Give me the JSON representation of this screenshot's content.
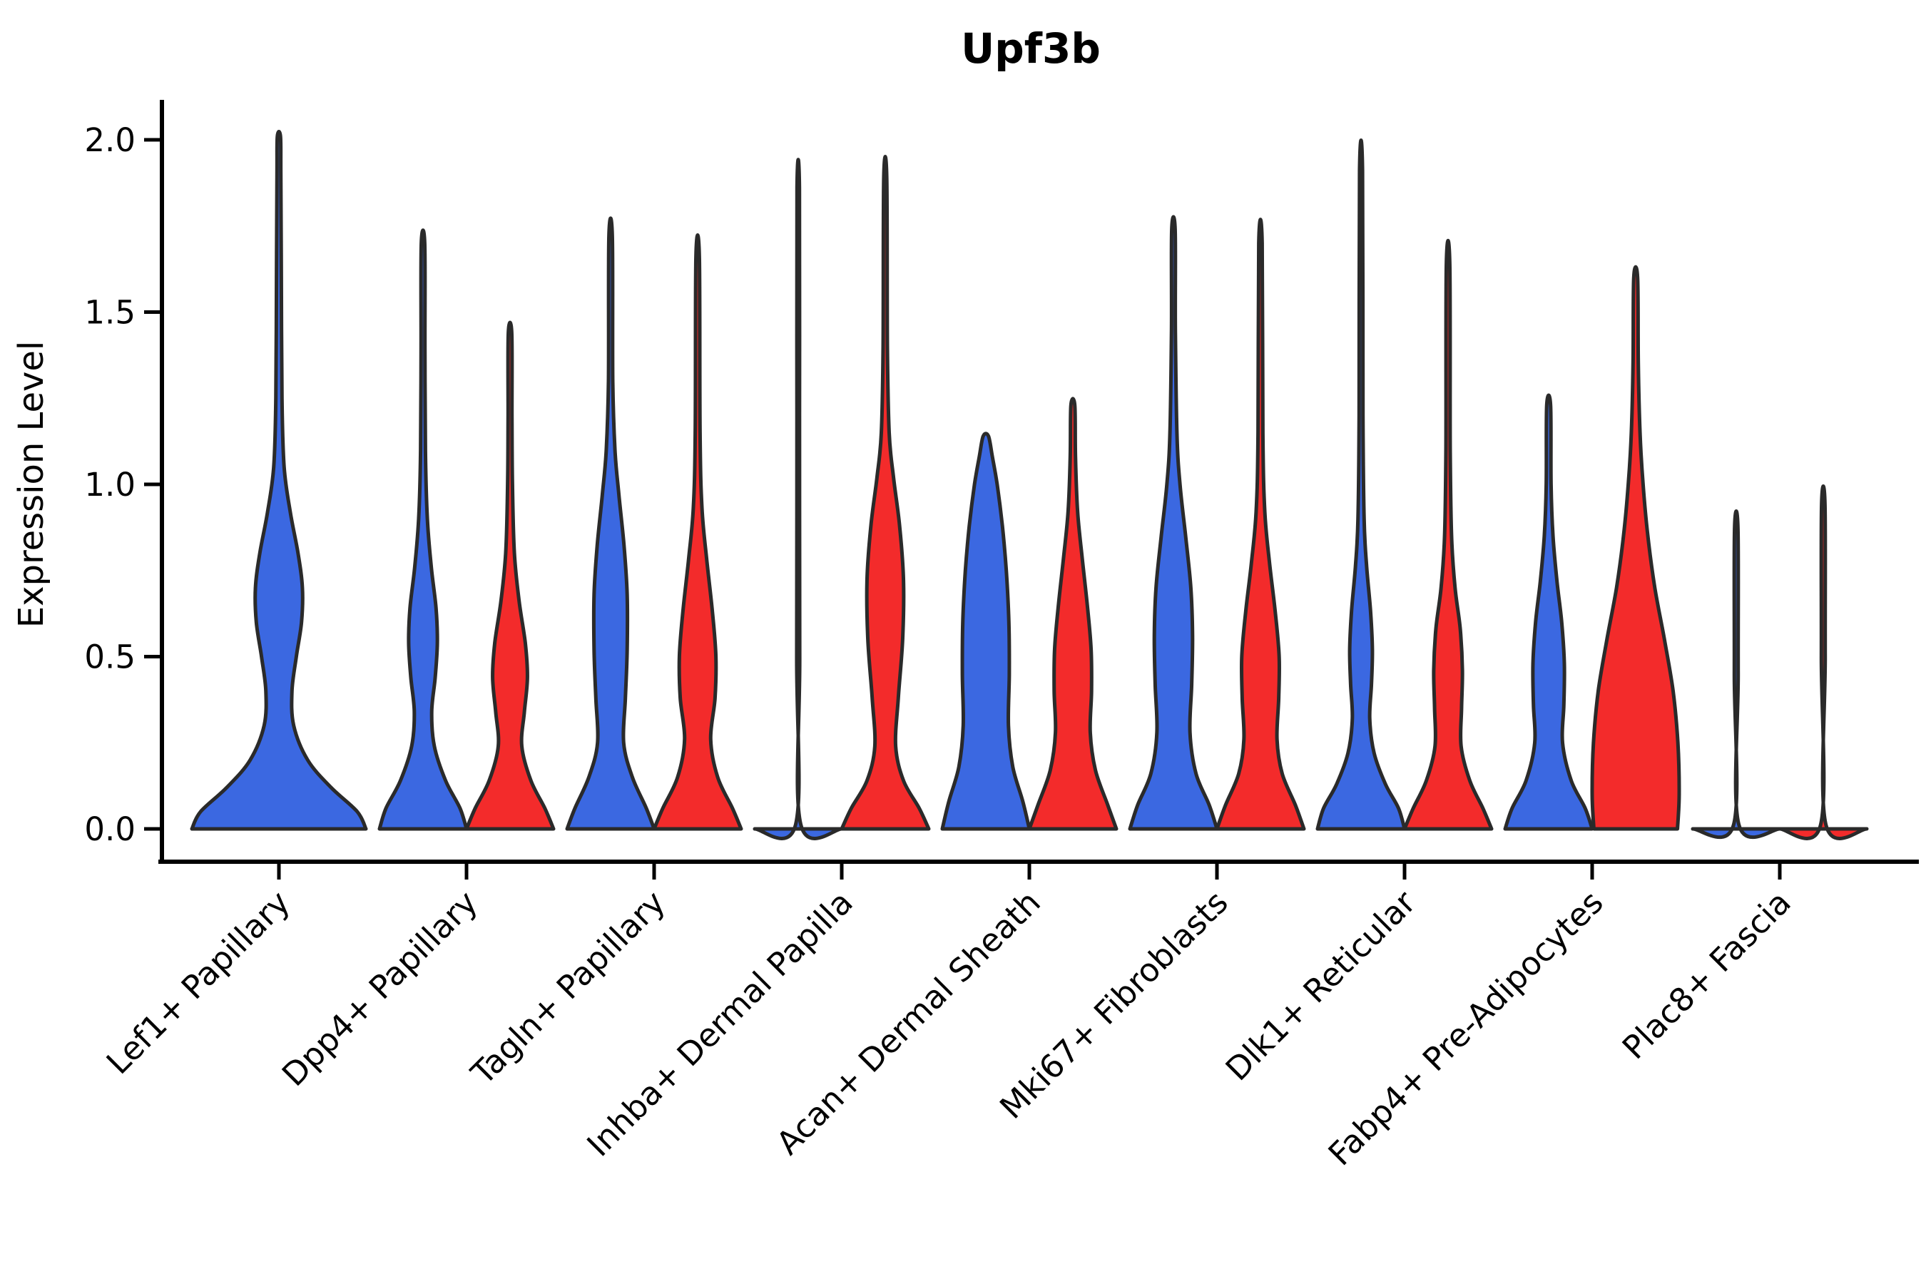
{
  "figure": {
    "title": "Upf3b",
    "ylabel": "Expression Level",
    "xlabel": ""
  },
  "chart_data": {
    "type": "violin",
    "title": "Upf3b",
    "xlabel": "",
    "ylabel": "Expression Level",
    "ylim": [
      -0.095,
      2.115
    ],
    "grid": false,
    "legend": "none",
    "ytick_labels": [
      "0.0",
      "0.5",
      "1.0",
      "1.5",
      "2.0"
    ],
    "ytick_values": [
      0.0,
      0.5,
      1.0,
      1.5,
      2.0
    ],
    "categories": [
      "Lef1+ Papillary",
      "Dpp4+ Papillary",
      "Tagln+ Papillary",
      "Inhba+ Dermal Papilla",
      "Acan+ Dermal Sheath",
      "Mki67+ Fibroblasts",
      "Dlk1+ Reticular",
      "Fabp4+ Pre-Adipocytes",
      "Plac8+ Fascia"
    ],
    "colors": {
      "group_blue": "#3B68E1",
      "group_red": "#F32B2B",
      "outline": "#2A2A2A",
      "axis": "#000000"
    },
    "violins": [
      {
        "category_index": 0,
        "group": "group_blue",
        "dx": 0,
        "half_width": 122,
        "max_value": 2.01,
        "profile": [
          [
            0,
            1.0
          ],
          [
            0.05,
            0.9
          ],
          [
            0.12,
            0.6
          ],
          [
            0.2,
            0.33
          ],
          [
            0.3,
            0.17
          ],
          [
            0.4,
            0.15
          ],
          [
            0.5,
            0.2
          ],
          [
            0.6,
            0.26
          ],
          [
            0.7,
            0.27
          ],
          [
            0.8,
            0.22
          ],
          [
            0.92,
            0.13
          ],
          [
            1.05,
            0.06
          ],
          [
            1.25,
            0.035
          ],
          [
            1.6,
            0.028
          ],
          [
            1.9,
            0.022
          ],
          [
            2.01,
            0.018
          ]
        ]
      },
      {
        "category_index": 1,
        "group": "group_blue",
        "dx": -61,
        "half_width": 61,
        "max_value": 1.7,
        "profile": [
          [
            0,
            1.0
          ],
          [
            0.06,
            0.85
          ],
          [
            0.14,
            0.52
          ],
          [
            0.24,
            0.26
          ],
          [
            0.34,
            0.2
          ],
          [
            0.44,
            0.28
          ],
          [
            0.54,
            0.33
          ],
          [
            0.64,
            0.3
          ],
          [
            0.76,
            0.19
          ],
          [
            0.9,
            0.1
          ],
          [
            1.1,
            0.055
          ],
          [
            1.4,
            0.045
          ],
          [
            1.7,
            0.04
          ]
        ]
      },
      {
        "category_index": 1,
        "group": "group_red",
        "dx": 61,
        "half_width": 61,
        "max_value": 1.44,
        "profile": [
          [
            0,
            1.0
          ],
          [
            0.06,
            0.8
          ],
          [
            0.14,
            0.48
          ],
          [
            0.24,
            0.27
          ],
          [
            0.34,
            0.33
          ],
          [
            0.44,
            0.4
          ],
          [
            0.54,
            0.35
          ],
          [
            0.66,
            0.21
          ],
          [
            0.8,
            0.1
          ],
          [
            1.0,
            0.055
          ],
          [
            1.2,
            0.045
          ],
          [
            1.44,
            0.04
          ]
        ]
      },
      {
        "category_index": 2,
        "group": "group_blue",
        "dx": -61,
        "half_width": 61,
        "max_value": 1.72,
        "profile": [
          [
            0,
            1.0
          ],
          [
            0.06,
            0.82
          ],
          [
            0.15,
            0.5
          ],
          [
            0.25,
            0.3
          ],
          [
            0.38,
            0.34
          ],
          [
            0.52,
            0.38
          ],
          [
            0.68,
            0.38
          ],
          [
            0.82,
            0.31
          ],
          [
            0.97,
            0.19
          ],
          [
            1.1,
            0.1
          ],
          [
            1.3,
            0.05
          ],
          [
            1.72,
            0.04
          ]
        ]
      },
      {
        "category_index": 2,
        "group": "group_red",
        "dx": 61,
        "half_width": 61,
        "max_value": 1.66,
        "profile": [
          [
            0,
            1.0
          ],
          [
            0.06,
            0.8
          ],
          [
            0.15,
            0.46
          ],
          [
            0.26,
            0.3
          ],
          [
            0.38,
            0.4
          ],
          [
            0.5,
            0.42
          ],
          [
            0.63,
            0.34
          ],
          [
            0.78,
            0.21
          ],
          [
            0.93,
            0.1
          ],
          [
            1.15,
            0.055
          ],
          [
            1.66,
            0.04
          ]
        ]
      },
      {
        "category_index": 3,
        "group": "group_blue",
        "dx": -61,
        "half_width": 61,
        "max_value": 1.86,
        "profile": [
          [
            0,
            1.0
          ],
          [
            0.012,
            0.06
          ],
          [
            0.5,
            0.035
          ],
          [
            1.2,
            0.03
          ],
          [
            1.86,
            0.028
          ]
        ]
      },
      {
        "category_index": 3,
        "group": "group_red",
        "dx": 61,
        "half_width": 61,
        "max_value": 1.89,
        "profile": [
          [
            0,
            1.0
          ],
          [
            0.06,
            0.78
          ],
          [
            0.14,
            0.42
          ],
          [
            0.24,
            0.24
          ],
          [
            0.38,
            0.3
          ],
          [
            0.55,
            0.4
          ],
          [
            0.72,
            0.42
          ],
          [
            0.88,
            0.33
          ],
          [
            1.02,
            0.19
          ],
          [
            1.15,
            0.09
          ],
          [
            1.4,
            0.05
          ],
          [
            1.89,
            0.035
          ]
        ]
      },
      {
        "category_index": 4,
        "group": "group_blue",
        "dx": -61,
        "half_width": 61,
        "max_value": 1.14,
        "profile": [
          [
            0,
            1.0
          ],
          [
            0.08,
            0.85
          ],
          [
            0.18,
            0.62
          ],
          [
            0.3,
            0.52
          ],
          [
            0.45,
            0.54
          ],
          [
            0.6,
            0.53
          ],
          [
            0.75,
            0.47
          ],
          [
            0.88,
            0.38
          ],
          [
            1.0,
            0.26
          ],
          [
            1.08,
            0.15
          ],
          [
            1.14,
            0.06
          ]
        ]
      },
      {
        "category_index": 4,
        "group": "group_red",
        "dx": 61,
        "half_width": 61,
        "max_value": 1.23,
        "profile": [
          [
            0,
            1.0
          ],
          [
            0.07,
            0.8
          ],
          [
            0.17,
            0.52
          ],
          [
            0.28,
            0.4
          ],
          [
            0.4,
            0.43
          ],
          [
            0.52,
            0.42
          ],
          [
            0.64,
            0.34
          ],
          [
            0.78,
            0.22
          ],
          [
            0.92,
            0.11
          ],
          [
            1.08,
            0.06
          ],
          [
            1.23,
            0.045
          ]
        ]
      },
      {
        "category_index": 5,
        "group": "group_blue",
        "dx": -61,
        "half_width": 61,
        "max_value": 1.74,
        "profile": [
          [
            0,
            1.0
          ],
          [
            0.07,
            0.82
          ],
          [
            0.16,
            0.52
          ],
          [
            0.28,
            0.38
          ],
          [
            0.42,
            0.42
          ],
          [
            0.56,
            0.44
          ],
          [
            0.7,
            0.4
          ],
          [
            0.85,
            0.28
          ],
          [
            1.0,
            0.15
          ],
          [
            1.15,
            0.08
          ],
          [
            1.45,
            0.045
          ],
          [
            1.74,
            0.04
          ]
        ]
      },
      {
        "category_index": 5,
        "group": "group_red",
        "dx": 61,
        "half_width": 61,
        "max_value": 1.7,
        "profile": [
          [
            0,
            1.0
          ],
          [
            0.07,
            0.8
          ],
          [
            0.16,
            0.5
          ],
          [
            0.26,
            0.38
          ],
          [
            0.38,
            0.42
          ],
          [
            0.5,
            0.43
          ],
          [
            0.63,
            0.34
          ],
          [
            0.77,
            0.21
          ],
          [
            0.92,
            0.1
          ],
          [
            1.15,
            0.055
          ],
          [
            1.7,
            0.04
          ]
        ]
      },
      {
        "category_index": 6,
        "group": "group_blue",
        "dx": -61,
        "half_width": 61,
        "max_value": 1.91,
        "profile": [
          [
            0,
            1.0
          ],
          [
            0.06,
            0.86
          ],
          [
            0.13,
            0.56
          ],
          [
            0.22,
            0.3
          ],
          [
            0.32,
            0.2
          ],
          [
            0.42,
            0.24
          ],
          [
            0.52,
            0.26
          ],
          [
            0.63,
            0.22
          ],
          [
            0.76,
            0.13
          ],
          [
            0.9,
            0.07
          ],
          [
            1.2,
            0.045
          ],
          [
            1.91,
            0.035
          ]
        ]
      },
      {
        "category_index": 6,
        "group": "group_red",
        "dx": 61,
        "half_width": 61,
        "max_value": 1.64,
        "profile": [
          [
            0,
            1.0
          ],
          [
            0.06,
            0.8
          ],
          [
            0.14,
            0.5
          ],
          [
            0.24,
            0.3
          ],
          [
            0.35,
            0.31
          ],
          [
            0.46,
            0.33
          ],
          [
            0.58,
            0.28
          ],
          [
            0.7,
            0.16
          ],
          [
            0.85,
            0.08
          ],
          [
            1.1,
            0.05
          ],
          [
            1.64,
            0.04
          ]
        ]
      },
      {
        "category_index": 7,
        "group": "group_blue",
        "dx": -61,
        "half_width": 61,
        "max_value": 1.23,
        "profile": [
          [
            0,
            1.0
          ],
          [
            0.06,
            0.84
          ],
          [
            0.14,
            0.52
          ],
          [
            0.25,
            0.32
          ],
          [
            0.36,
            0.35
          ],
          [
            0.48,
            0.36
          ],
          [
            0.6,
            0.3
          ],
          [
            0.72,
            0.19
          ],
          [
            0.85,
            0.1
          ],
          [
            1.0,
            0.055
          ],
          [
            1.23,
            0.045
          ]
        ]
      },
      {
        "category_index": 7,
        "group": "group_red",
        "dx": 61,
        "half_width": 61,
        "max_value": 1.6,
        "profile": [
          [
            0,
            0.96
          ],
          [
            0.1,
            1.0
          ],
          [
            0.25,
            0.97
          ],
          [
            0.4,
            0.86
          ],
          [
            0.55,
            0.66
          ],
          [
            0.7,
            0.44
          ],
          [
            0.85,
            0.28
          ],
          [
            1.0,
            0.17
          ],
          [
            1.15,
            0.1
          ],
          [
            1.35,
            0.06
          ],
          [
            1.6,
            0.045
          ]
        ]
      },
      {
        "category_index": 8,
        "group": "group_blue",
        "dx": -61,
        "half_width": 61,
        "max_value": 0.87,
        "profile": [
          [
            0,
            1.0
          ],
          [
            0.012,
            0.06
          ],
          [
            0.45,
            0.045
          ],
          [
            0.87,
            0.04
          ]
        ]
      },
      {
        "category_index": 8,
        "group": "group_red",
        "dx": 61,
        "half_width": 61,
        "max_value": 0.94,
        "profile": [
          [
            0,
            1.0
          ],
          [
            0.012,
            0.06
          ],
          [
            0.5,
            0.045
          ],
          [
            0.94,
            0.04
          ]
        ]
      }
    ]
  }
}
